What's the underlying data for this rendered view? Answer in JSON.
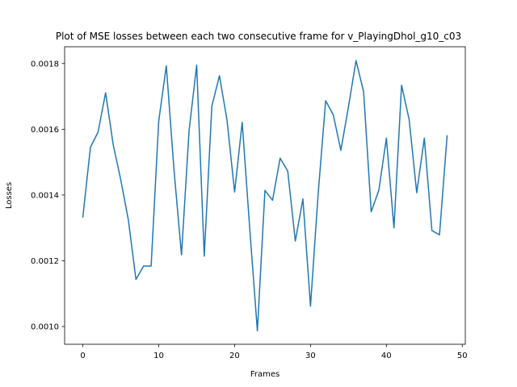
{
  "chart_data": {
    "type": "line",
    "title": "Plot of MSE losses between each two consecutive frame for v_PlayingDhol_g10_c03",
    "xlabel": "Frames",
    "ylabel": "Losses",
    "xlim": [
      -2.4,
      50.4
    ],
    "ylim": [
      0.000946,
      0.001851
    ],
    "xticks": [
      0,
      10,
      20,
      30,
      40,
      50
    ],
    "xtick_labels": [
      "0",
      "10",
      "20",
      "30",
      "40",
      "50"
    ],
    "yticks": [
      0.001,
      0.0012,
      0.0014,
      0.0016,
      0.0018
    ],
    "ytick_labels": [
      "0.0010",
      "0.0012",
      "0.0014",
      "0.0016",
      "0.0018"
    ],
    "grid": false,
    "series": [
      {
        "color": "#1f77b4",
        "x": [
          0,
          1,
          2,
          3,
          4,
          5,
          6,
          7,
          8,
          9,
          10,
          11,
          12,
          13,
          14,
          15,
          16,
          17,
          18,
          19,
          20,
          21,
          22,
          23,
          24,
          25,
          26,
          27,
          28,
          29,
          30,
          31,
          32,
          33,
          34,
          35,
          36,
          37,
          38,
          39,
          40,
          41,
          42,
          43,
          44,
          45,
          46,
          47,
          48
        ],
        "y": [
          0.001333,
          0.001545,
          0.001591,
          0.001711,
          0.001553,
          0.001446,
          0.001324,
          0.001143,
          0.001184,
          0.001184,
          0.001625,
          0.001793,
          0.00148,
          0.001218,
          0.001596,
          0.001795,
          0.001214,
          0.00167,
          0.001763,
          0.001628,
          0.001409,
          0.001621,
          0.001296,
          0.000987,
          0.001414,
          0.001384,
          0.001512,
          0.001473,
          0.00126,
          0.001388,
          0.001062,
          0.001401,
          0.001687,
          0.001644,
          0.001536,
          0.001668,
          0.001809,
          0.001714,
          0.001349,
          0.001414,
          0.001573,
          0.0013,
          0.001734,
          0.00163,
          0.001407,
          0.001573,
          0.001292,
          0.001279,
          0.00158
        ]
      }
    ]
  }
}
